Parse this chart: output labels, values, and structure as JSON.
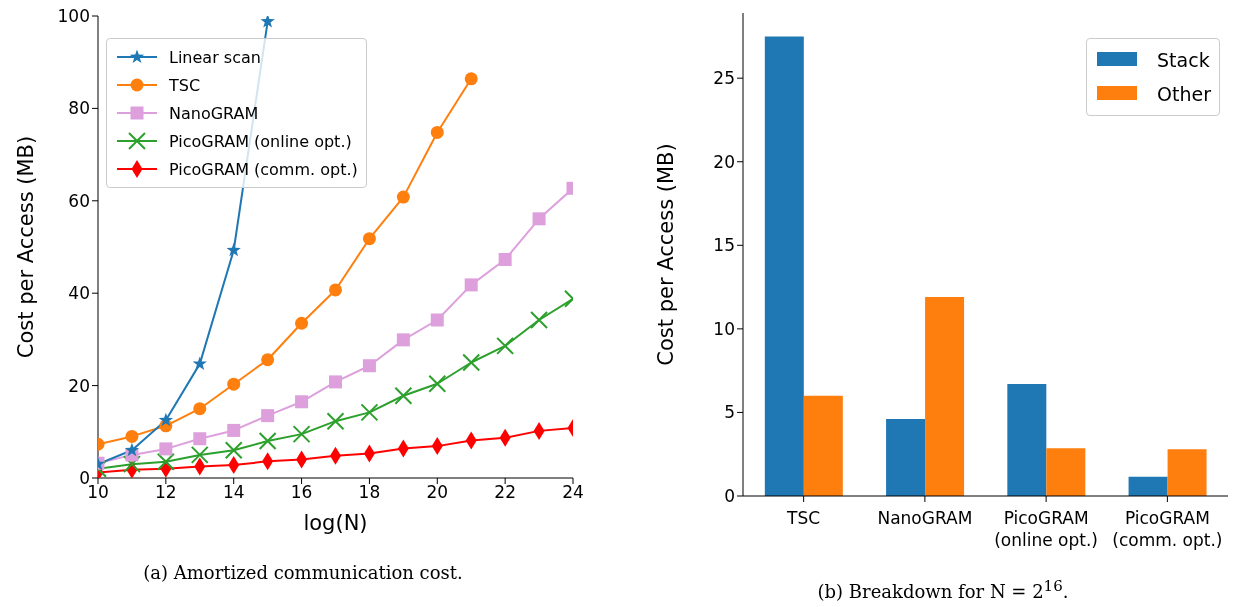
{
  "chart_data": [
    {
      "type": "line",
      "xlabel": "log(N)",
      "ylabel": "Cost per Access (MB)",
      "annotations": [
        "(a) Amortized communication cost."
      ],
      "x": [
        10,
        11,
        12,
        13,
        14,
        15,
        16,
        17,
        18,
        19,
        20,
        21,
        22,
        23,
        24
      ],
      "xlim": [
        10,
        24
      ],
      "xticks": [
        10,
        12,
        14,
        16,
        18,
        20,
        22,
        24
      ],
      "ylim": [
        0,
        100
      ],
      "yticks": [
        0,
        20,
        40,
        60,
        80,
        100
      ],
      "legend": "top left",
      "grid": false,
      "series": [
        {
          "name": "Linear scan",
          "color": "#1f77b4",
          "marker": "star",
          "x": [
            10,
            11,
            12,
            13,
            14,
            15
          ],
          "values": [
            3,
            6,
            12.5,
            24.7,
            49.3,
            98.8
          ]
        },
        {
          "name": "TSC",
          "color": "#ff7f0e",
          "marker": "circle",
          "x": [
            10,
            11,
            12,
            13,
            14,
            15,
            16,
            17,
            18,
            19,
            20,
            21
          ],
          "values": [
            7.3,
            9,
            11.3,
            15,
            20.3,
            25.6,
            33.5,
            40.7,
            51.8,
            60.8,
            74.8,
            86.4
          ]
        },
        {
          "name": "NanoGRAM",
          "color": "#dda0dd",
          "marker": "square",
          "values": [
            3.2,
            5,
            6.3,
            8.5,
            10.3,
            13.5,
            16.5,
            20.8,
            24.3,
            29.9,
            34.2,
            41.8,
            47.3,
            56.1,
            62.7
          ]
        },
        {
          "name": "PicoGRAM (online opt.)",
          "color": "#2ca02c",
          "marker": "cross",
          "values": [
            2,
            3,
            3.5,
            5,
            6,
            8,
            9.5,
            12.3,
            14.2,
            17.8,
            20.4,
            25,
            28.6,
            34.2,
            38.8
          ]
        },
        {
          "name": "PicoGRAM (comm. opt.)",
          "color": "#ff0000",
          "marker": "diamond",
          "values": [
            1.2,
            1.8,
            2,
            2.5,
            2.8,
            3.6,
            4,
            4.8,
            5.3,
            6.4,
            6.9,
            8.1,
            8.7,
            10.2,
            10.8
          ]
        }
      ]
    },
    {
      "type": "bar",
      "ylabel": "Cost per Access (MB)",
      "annotations": [
        "(b) Breakdown for N = 2$^{16}$."
      ],
      "categories": [
        "TSC",
        "NanoGRAM",
        "PicoGRAM (online opt.)",
        "PicoGRAM (comm. opt.)"
      ],
      "ylim": [
        0,
        28.9
      ],
      "yticks": [
        0,
        5,
        10,
        15,
        20,
        25
      ],
      "legend": "top right",
      "grid": false,
      "series": [
        {
          "name": "Stack",
          "color": "#1f77b4",
          "values": [
            27.5,
            4.6,
            6.7,
            1.15
          ]
        },
        {
          "name": "Other",
          "color": "#ff7f0e",
          "values": [
            6.0,
            11.9,
            2.85,
            2.8
          ]
        }
      ]
    }
  ]
}
